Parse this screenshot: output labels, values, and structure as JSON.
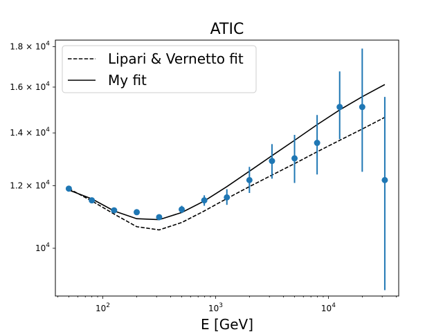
{
  "chart_data": {
    "type": "scatter",
    "title": "ATIC",
    "xlabel": "E [GeV]",
    "ylabel": "",
    "xscale": "log",
    "yscale": "log",
    "xlim": [
      38,
      42000
    ],
    "ylim": [
      8700,
      18350
    ],
    "grid": false,
    "legend_position": "top-left",
    "x_ticks": [
      {
        "value": 100,
        "label": "10",
        "exp": "2"
      },
      {
        "value": 1000,
        "label": "10",
        "exp": "3"
      },
      {
        "value": 10000,
        "label": "10",
        "exp": "4"
      }
    ],
    "y_ticks": [
      {
        "value": 10000,
        "label": "10",
        "exp": "4",
        "mult": ""
      },
      {
        "value": 12000,
        "label": "10",
        "exp": "4",
        "mult": "1.2 × "
      },
      {
        "value": 14000,
        "label": "10",
        "exp": "4",
        "mult": "1.4 × "
      },
      {
        "value": 16000,
        "label": "10",
        "exp": "4",
        "mult": "1.6 × "
      },
      {
        "value": 18000,
        "label": "10",
        "exp": "4",
        "mult": "1.8 × "
      }
    ],
    "series": [
      {
        "name": "Lipari & Vernetto fit",
        "style": "dashed",
        "color": "#000000",
        "x": [
          50,
          80,
          126,
          200,
          316,
          501,
          794,
          1259,
          1995,
          3162,
          5012,
          7943,
          12589,
          19953,
          31623
        ],
        "y": [
          11900,
          11480,
          11050,
          10650,
          10550,
          10780,
          11150,
          11560,
          11970,
          12380,
          12800,
          13250,
          13700,
          14160,
          14650
        ]
      },
      {
        "name": "My fit",
        "style": "solid",
        "color": "#000000",
        "x": [
          50,
          80,
          126,
          200,
          316,
          501,
          794,
          1259,
          1995,
          3162,
          5012,
          7943,
          12589,
          19953,
          31623
        ],
        "y": [
          11850,
          11550,
          11150,
          10900,
          10870,
          11100,
          11480,
          11970,
          12520,
          13100,
          13700,
          14340,
          14970,
          15560,
          16120
        ]
      },
      {
        "name": "",
        "style": "errorbar",
        "color": "#1f77b4",
        "x": [
          50,
          80,
          126,
          200,
          316,
          501,
          794,
          1259,
          1995,
          3162,
          5012,
          7943,
          12589,
          19953,
          31623
        ],
        "y": [
          11900,
          11500,
          11170,
          11110,
          10950,
          11200,
          11500,
          11600,
          12200,
          12900,
          13000,
          13600,
          15100,
          15100,
          12200
        ],
        "yerr_low": [
          80,
          50,
          50,
          60,
          60,
          120,
          180,
          250,
          450,
          650,
          900,
          1200,
          1350,
          2600,
          3350
        ],
        "yerr_high": [
          80,
          50,
          50,
          60,
          60,
          120,
          170,
          280,
          480,
          650,
          920,
          1150,
          1650,
          2800,
          3350
        ]
      }
    ]
  }
}
